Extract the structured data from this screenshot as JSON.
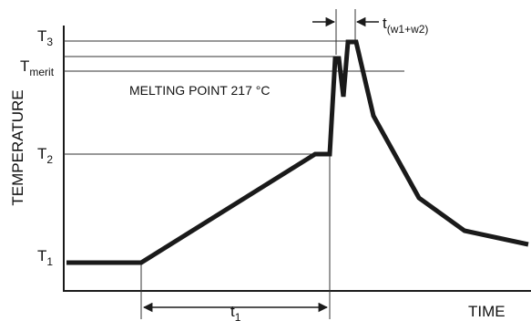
{
  "diagram": {
    "y_axis_title": "TEMPERATURE",
    "x_axis_title": "TIME",
    "levels": {
      "t3": {
        "base": "T",
        "sub": "3"
      },
      "tmerit": {
        "base": "T",
        "sub": "merit"
      },
      "t2": {
        "base": "T",
        "sub": "2"
      },
      "t1": {
        "base": "T",
        "sub": "1"
      }
    },
    "melting_point_label": "MELTING POINT 217 °C",
    "duration_t1": {
      "base": "t",
      "sub": "1"
    },
    "duration_tw": {
      "base": "t",
      "sub": "(w1+w2)"
    },
    "colors": {
      "profile": "#1a1a1a",
      "lines": "#333333"
    }
  }
}
